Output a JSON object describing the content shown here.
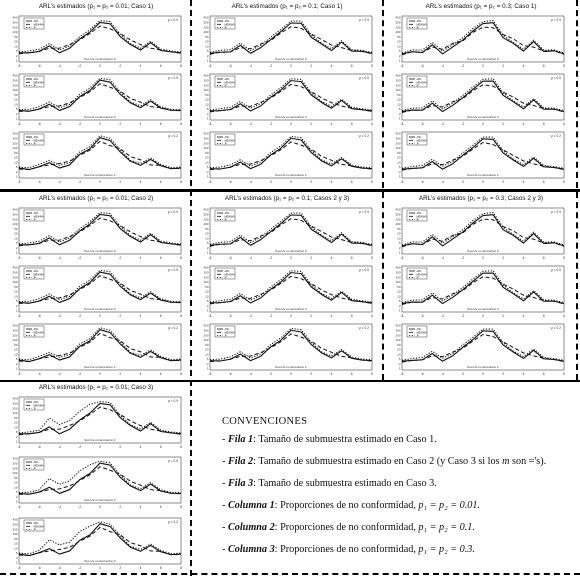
{
  "blocks": [
    {
      "id": "r1c1",
      "title": "ARL’s estimados (p₁ = p₂ = 0.01; Caso 1)"
    },
    {
      "id": "r1c2",
      "title": "ARL’s estimados (p₁ = p₂ = 0.1; Caso 1)"
    },
    {
      "id": "r1c3",
      "title": "ARL’s estimados (p₁ = p₂ = 0.3; Caso 1)"
    },
    {
      "id": "r2c1",
      "title": "ARL’s estimados (p₁ = p₂ = 0.01; Caso 2)"
    },
    {
      "id": "r2c2",
      "title": "ARL’s estimados (p₁ = p₂ = 0.1; Casos 2 y 3)"
    },
    {
      "id": "r2c3",
      "title": "ARL’s estimados (p₁ = p₂ = 0.3; Casos 2 y 3)"
    },
    {
      "id": "r3c1",
      "title": "ARL’s estimados (p₁ = p₂ = 0.01; Caso 3)"
    }
  ],
  "chart_data": {
    "type": "line",
    "xlabel": "Nivel de contaminación Z",
    "x": [
      -8,
      -7,
      -6,
      -5,
      -4,
      -3,
      -2,
      -1,
      0,
      1,
      2,
      3,
      4,
      5,
      6,
      7,
      8
    ],
    "x_ticks": [
      -8,
      -6,
      -4,
      -2,
      0,
      2,
      4,
      6,
      8
    ],
    "y_ticks": [
      "400",
      "300",
      "200",
      "100",
      "50",
      "20",
      "10",
      "5",
      "2",
      "1"
    ],
    "rho_labels": [
      "ρ = 0.9",
      "ρ = 0.5",
      "ρ = 0.2"
    ],
    "legend": [
      "ARL",
      "MEWMA",
      "X̄²"
    ],
    "series_styles": [
      "solid",
      "dashed",
      "dotted"
    ],
    "profiles": {
      "solid": [
        2,
        2,
        2.3,
        3.5,
        2,
        3,
        5,
        6.5,
        8.6,
        8.3,
        5.5,
        3.8,
        2.6,
        4.2,
        2.5,
        2.2,
        2
      ],
      "dashed": [
        1.8,
        2,
        2.3,
        3,
        3,
        3.8,
        4.8,
        6.2,
        7.8,
        7.2,
        6.2,
        4.8,
        3.8,
        3,
        2.6,
        2.2,
        1.9
      ],
      "dotted": [
        2.2,
        2.4,
        2.8,
        4,
        2.6,
        3.5,
        5.5,
        7,
        9,
        8.8,
        6,
        4,
        3,
        4.5,
        2.8,
        2.4,
        2.2
      ]
    }
  },
  "conventions": {
    "title": "CONVENCIONES",
    "items": [
      {
        "label": "Fila 1",
        "text": "Tamaño de submuestra estimado en Caso 1."
      },
      {
        "label": "Fila 2",
        "text": "Tamaño de submuestra estimado en Caso 2 (y Caso 3 si los ",
        "math": "m",
        "text2": " son ='s)."
      },
      {
        "label": "Fila 3",
        "text": "Tamaño de submuestra estimado en Caso 3."
      },
      {
        "label": "Columna 1",
        "text": "Proporciones de no conformidad, ",
        "math": "p₁ = p₂ = 0.01."
      },
      {
        "label": "Columna 2",
        "text": "Proporciones de no conformidad, ",
        "math": "p₁ = p₂ = 0.1."
      },
      {
        "label": "Columna 3",
        "text": "Proporciones de no conformidad, ",
        "math": "p₁ = p₂ = 0.3."
      }
    ]
  }
}
